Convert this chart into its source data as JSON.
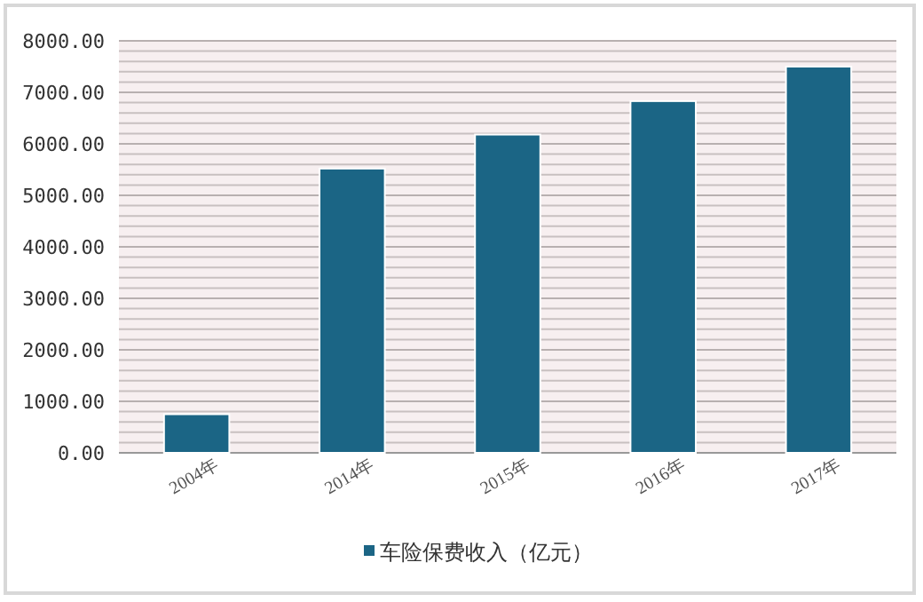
{
  "chart_data": {
    "type": "bar",
    "categories": [
      "2004年",
      "2014年",
      "2015年",
      "2016年",
      "2017年"
    ],
    "series": [
      {
        "name": "车险保费收入（亿元）",
        "color": "#1b6585",
        "values": [
          750,
          5520,
          6180,
          6830,
          7500
        ]
      }
    ],
    "ylim": [
      0,
      8000
    ],
    "yticks": [
      {
        "value": 0,
        "label": "0.00"
      },
      {
        "value": 1000,
        "label": "1000.00"
      },
      {
        "value": 2000,
        "label": "2000.00"
      },
      {
        "value": 3000,
        "label": "3000.00"
      },
      {
        "value": 4000,
        "label": "4000.00"
      },
      {
        "value": 5000,
        "label": "5000.00"
      },
      {
        "value": 6000,
        "label": "6000.00"
      },
      {
        "value": 7000,
        "label": "7000.00"
      },
      {
        "value": 8000,
        "label": "8000.00"
      }
    ],
    "grid": "y",
    "legend": "bottom"
  }
}
